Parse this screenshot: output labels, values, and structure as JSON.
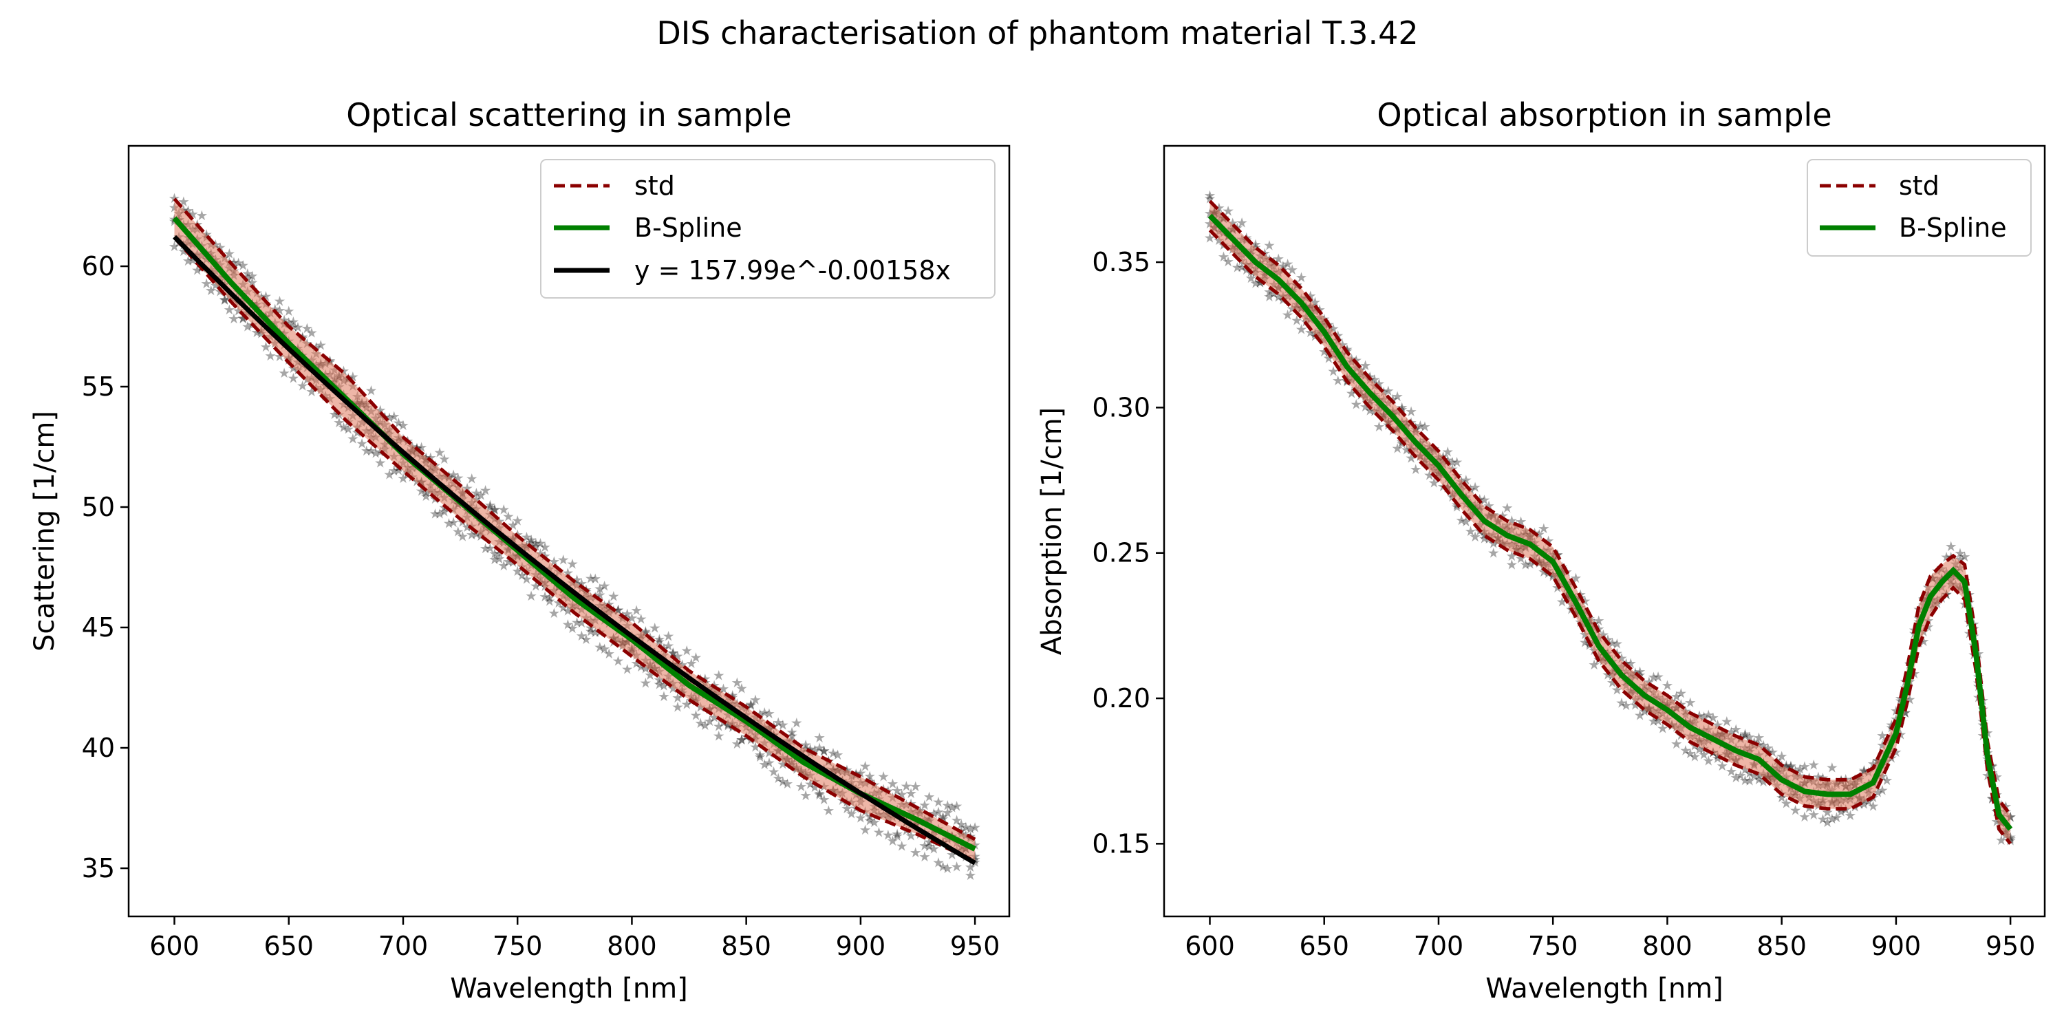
{
  "figure": {
    "suptitle": "DIS characterisation of phantom material T.3.42"
  },
  "colors": {
    "std": "#8b0000",
    "bspline": "#008000",
    "fit": "#000000",
    "band": "#e07a5f",
    "scatter_palette": [
      "#440154",
      "#3b528b",
      "#21918c",
      "#5ec962",
      "#fde725"
    ]
  },
  "chart_data": [
    {
      "type": "line",
      "title": "Optical scattering in sample",
      "xlabel": "Wavelength [nm]",
      "ylabel": "Scattering [1/cm]",
      "xlim": [
        580,
        965
      ],
      "ylim": [
        33,
        65
      ],
      "xticks": [
        600,
        650,
        700,
        750,
        800,
        850,
        900,
        950
      ],
      "yticks": [
        35,
        40,
        45,
        50,
        55,
        60
      ],
      "grid": false,
      "legend": {
        "position": "upper right",
        "entries": [
          "std",
          "B-Spline",
          "y = 157.99e^-0.00158x"
        ]
      },
      "x": [
        600,
        625,
        650,
        675,
        700,
        725,
        750,
        775,
        800,
        825,
        850,
        875,
        900,
        925,
        950
      ],
      "series": [
        {
          "name": "B-Spline",
          "kind": "bspline",
          "values": [
            62.0,
            59.3,
            56.8,
            54.5,
            52.2,
            50.2,
            48.2,
            46.2,
            44.5,
            42.6,
            41.1,
            39.4,
            38.1,
            37.0,
            35.8
          ]
        },
        {
          "name": "std",
          "kind": "std",
          "upper": [
            62.8,
            60.1,
            57.5,
            55.5,
            52.9,
            50.9,
            48.8,
            46.9,
            45.2,
            43.2,
            41.7,
            40.0,
            38.8,
            37.5,
            36.2
          ],
          "lower": [
            61.2,
            58.5,
            56.0,
            53.6,
            51.5,
            49.5,
            47.6,
            45.6,
            43.8,
            42.0,
            40.5,
            38.8,
            37.4,
            36.4,
            35.3
          ]
        },
        {
          "name": "y = 157.99e^-0.00158x",
          "kind": "fit",
          "a": 157.99,
          "b": -0.00158,
          "x_range": [
            600,
            950
          ]
        }
      ],
      "scatter": {
        "x_range": [
          600,
          950
        ],
        "spread": 0.9,
        "runs": 5
      }
    },
    {
      "type": "line",
      "title": "Optical absorption in sample",
      "xlabel": "Wavelength [nm]",
      "ylabel": "Absorption [1/cm]",
      "xlim": [
        580,
        965
      ],
      "ylim": [
        0.125,
        0.39
      ],
      "xticks": [
        600,
        650,
        700,
        750,
        800,
        850,
        900,
        950
      ],
      "yticks": [
        0.15,
        0.2,
        0.25,
        0.3,
        0.35
      ],
      "grid": false,
      "legend": {
        "position": "upper right",
        "entries": [
          "std",
          "B-Spline"
        ]
      },
      "x": [
        600,
        610,
        620,
        630,
        640,
        650,
        660,
        670,
        680,
        690,
        700,
        710,
        720,
        730,
        740,
        750,
        760,
        770,
        780,
        790,
        800,
        810,
        820,
        830,
        840,
        850,
        860,
        870,
        880,
        890,
        900,
        905,
        910,
        915,
        920,
        925,
        930,
        935,
        940,
        945,
        950
      ],
      "series": [
        {
          "name": "B-Spline",
          "kind": "bspline",
          "values": [
            0.366,
            0.358,
            0.35,
            0.344,
            0.336,
            0.326,
            0.314,
            0.305,
            0.297,
            0.288,
            0.28,
            0.27,
            0.261,
            0.256,
            0.253,
            0.247,
            0.233,
            0.218,
            0.208,
            0.201,
            0.196,
            0.19,
            0.186,
            0.182,
            0.179,
            0.172,
            0.168,
            0.167,
            0.167,
            0.171,
            0.188,
            0.205,
            0.225,
            0.235,
            0.24,
            0.244,
            0.24,
            0.215,
            0.18,
            0.16,
            0.155
          ]
        },
        {
          "name": "std",
          "kind": "std",
          "upper": [
            0.371,
            0.363,
            0.355,
            0.349,
            0.341,
            0.331,
            0.319,
            0.31,
            0.302,
            0.293,
            0.285,
            0.275,
            0.266,
            0.261,
            0.258,
            0.252,
            0.238,
            0.223,
            0.213,
            0.206,
            0.201,
            0.195,
            0.191,
            0.187,
            0.184,
            0.177,
            0.173,
            0.172,
            0.172,
            0.176,
            0.193,
            0.211,
            0.232,
            0.242,
            0.246,
            0.249,
            0.246,
            0.221,
            0.185,
            0.165,
            0.16
          ],
          "lower": [
            0.361,
            0.353,
            0.345,
            0.339,
            0.331,
            0.321,
            0.309,
            0.3,
            0.292,
            0.283,
            0.275,
            0.265,
            0.256,
            0.251,
            0.248,
            0.242,
            0.228,
            0.213,
            0.203,
            0.196,
            0.191,
            0.185,
            0.181,
            0.177,
            0.174,
            0.167,
            0.163,
            0.162,
            0.162,
            0.166,
            0.183,
            0.199,
            0.218,
            0.228,
            0.234,
            0.238,
            0.234,
            0.209,
            0.175,
            0.155,
            0.15
          ]
        }
      ],
      "scatter": {
        "x_range": [
          600,
          950
        ],
        "spread": 0.006,
        "runs": 5
      }
    }
  ]
}
